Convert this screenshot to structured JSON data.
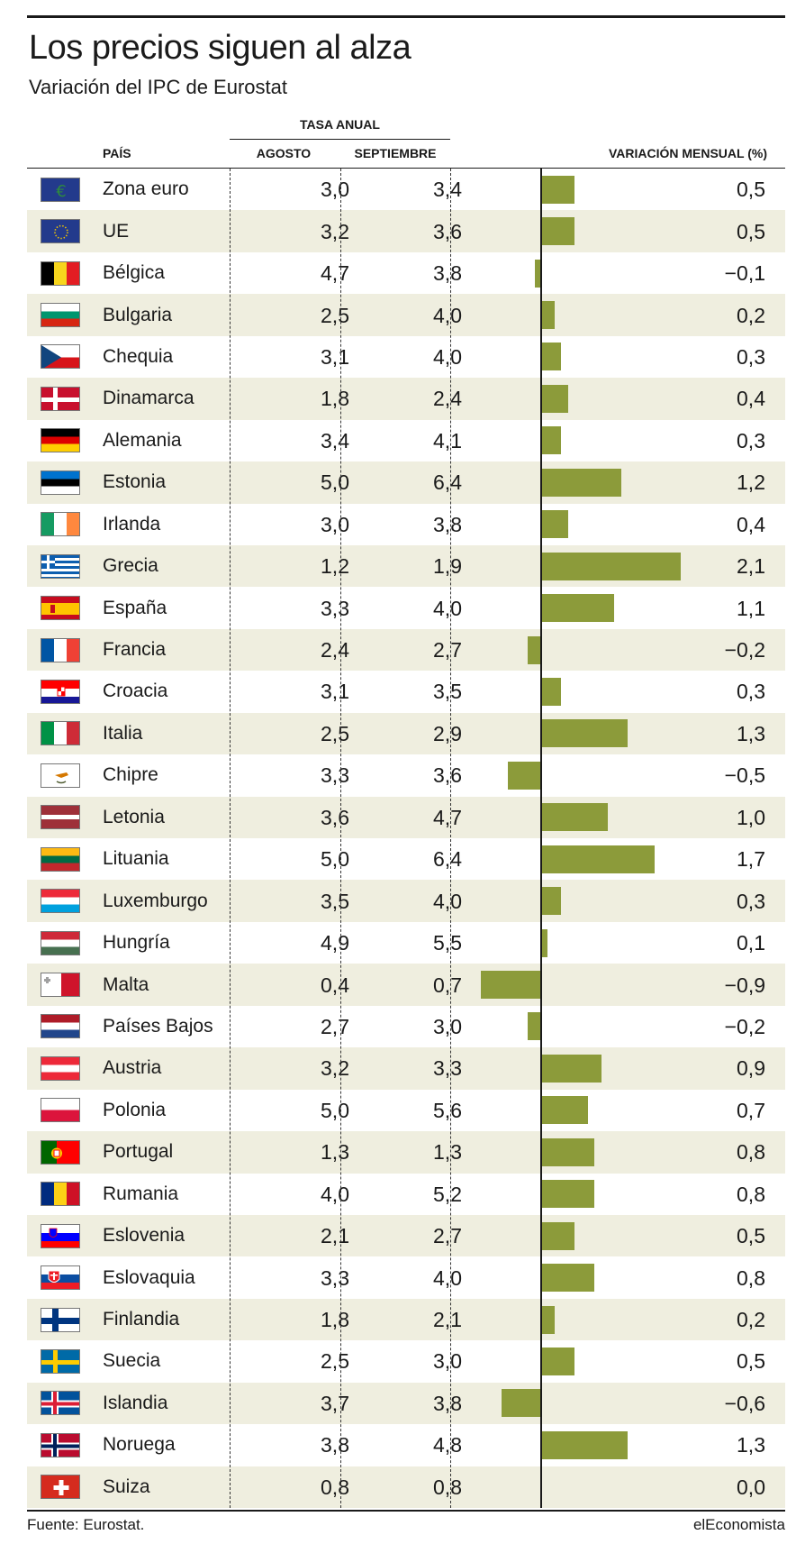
{
  "title": "Los precios siguen al alza",
  "subtitle": "Variación del IPC de Eurostat",
  "headers": {
    "pais": "PAÍS",
    "tasa_anual": "TASA ANUAL",
    "agosto": "AGOSTO",
    "septiembre": "SEPTIEMBRE",
    "variacion": "VARIACIÓN MENSUAL (%)"
  },
  "footer": {
    "source": "Fuente: Eurostat.",
    "brand": "elEconomista"
  },
  "colors": {
    "bar": "#8c9b3a",
    "stripe": "#efeedf"
  },
  "chart_data": {
    "type": "table",
    "columns": [
      "PAÍS",
      "AGOSTO",
      "SEPTIEMBRE",
      "VARIACIÓN MENSUAL (%)"
    ],
    "rows": [
      {
        "country": "Zona euro",
        "flag": "eurozone-flag",
        "agosto": "3,0",
        "septiembre": "3,4",
        "mensual": "0,5",
        "value": 0.5
      },
      {
        "country": "UE",
        "flag": "eu-flag",
        "agosto": "3,2",
        "septiembre": "3,6",
        "mensual": "0,5",
        "value": 0.5
      },
      {
        "country": "Bélgica",
        "flag": "belgium-flag",
        "agosto": "4,7",
        "septiembre": "3,8",
        "mensual": "−0,1",
        "value": -0.1
      },
      {
        "country": "Bulgaria",
        "flag": "bulgaria-flag",
        "agosto": "2,5",
        "septiembre": "4,0",
        "mensual": "0,2",
        "value": 0.2
      },
      {
        "country": "Chequia",
        "flag": "czechia-flag",
        "agosto": "3,1",
        "septiembre": "4,0",
        "mensual": "0,3",
        "value": 0.3
      },
      {
        "country": "Dinamarca",
        "flag": "denmark-flag",
        "agosto": "1,8",
        "septiembre": "2,4",
        "mensual": "0,4",
        "value": 0.4
      },
      {
        "country": "Alemania",
        "flag": "germany-flag",
        "agosto": "3,4",
        "septiembre": "4,1",
        "mensual": "0,3",
        "value": 0.3
      },
      {
        "country": "Estonia",
        "flag": "estonia-flag",
        "agosto": "5,0",
        "septiembre": "6,4",
        "mensual": "1,2",
        "value": 1.2
      },
      {
        "country": "Irlanda",
        "flag": "ireland-flag",
        "agosto": "3,0",
        "septiembre": "3,8",
        "mensual": "0,4",
        "value": 0.4
      },
      {
        "country": "Grecia",
        "flag": "greece-flag",
        "agosto": "1,2",
        "septiembre": "1,9",
        "mensual": "2,1",
        "value": 2.1
      },
      {
        "country": "España",
        "flag": "spain-flag",
        "agosto": "3,3",
        "septiembre": "4,0",
        "mensual": "1,1",
        "value": 1.1
      },
      {
        "country": "Francia",
        "flag": "france-flag",
        "agosto": "2,4",
        "septiembre": "2,7",
        "mensual": "−0,2",
        "value": -0.2
      },
      {
        "country": "Croacia",
        "flag": "croatia-flag",
        "agosto": "3,1",
        "septiembre": "3,5",
        "mensual": "0,3",
        "value": 0.3
      },
      {
        "country": "Italia",
        "flag": "italy-flag",
        "agosto": "2,5",
        "septiembre": "2,9",
        "mensual": "1,3",
        "value": 1.3
      },
      {
        "country": "Chipre",
        "flag": "cyprus-flag",
        "agosto": "3,3",
        "septiembre": "3,6",
        "mensual": "−0,5",
        "value": -0.5
      },
      {
        "country": "Letonia",
        "flag": "latvia-flag",
        "agosto": "3,6",
        "septiembre": "4,7",
        "mensual": "1,0",
        "value": 1.0
      },
      {
        "country": "Lituania",
        "flag": "lithuania-flag",
        "agosto": "5,0",
        "septiembre": "6,4",
        "mensual": "1,7",
        "value": 1.7
      },
      {
        "country": "Luxemburgo",
        "flag": "luxembourg-flag",
        "agosto": "3,5",
        "septiembre": "4,0",
        "mensual": "0,3",
        "value": 0.3
      },
      {
        "country": "Hungría",
        "flag": "hungary-flag",
        "agosto": "4,9",
        "septiembre": "5,5",
        "mensual": "0,1",
        "value": 0.1
      },
      {
        "country": "Malta",
        "flag": "malta-flag",
        "agosto": "0,4",
        "septiembre": "0,7",
        "mensual": "−0,9",
        "value": -0.9
      },
      {
        "country": "Países Bajos",
        "flag": "netherlands-flag",
        "agosto": "2,7",
        "septiembre": "3,0",
        "mensual": "−0,2",
        "value": -0.2
      },
      {
        "country": "Austria",
        "flag": "austria-flag",
        "agosto": "3,2",
        "septiembre": "3,3",
        "mensual": "0,9",
        "value": 0.9
      },
      {
        "country": "Polonia",
        "flag": "poland-flag",
        "agosto": "5,0",
        "septiembre": "5,6",
        "mensual": "0,7",
        "value": 0.7
      },
      {
        "country": "Portugal",
        "flag": "portugal-flag",
        "agosto": "1,3",
        "septiembre": "1,3",
        "mensual": "0,8",
        "value": 0.8
      },
      {
        "country": "Rumania",
        "flag": "romania-flag",
        "agosto": "4,0",
        "septiembre": "5,2",
        "mensual": "0,8",
        "value": 0.8
      },
      {
        "country": "Eslovenia",
        "flag": "slovenia-flag",
        "agosto": "2,1",
        "septiembre": "2,7",
        "mensual": "0,5",
        "value": 0.5
      },
      {
        "country": "Eslovaquia",
        "flag": "slovakia-flag",
        "agosto": "3,3",
        "septiembre": "4,0",
        "mensual": "0,8",
        "value": 0.8
      },
      {
        "country": "Finlandia",
        "flag": "finland-flag",
        "agosto": "1,8",
        "septiembre": "2,1",
        "mensual": "0,2",
        "value": 0.2
      },
      {
        "country": "Suecia",
        "flag": "sweden-flag",
        "agosto": "2,5",
        "septiembre": "3,0",
        "mensual": "0,5",
        "value": 0.5
      },
      {
        "country": "Islandia",
        "flag": "iceland-flag",
        "agosto": "3,7",
        "septiembre": "3,8",
        "mensual": "−0,6",
        "value": -0.6
      },
      {
        "country": "Noruega",
        "flag": "norway-flag",
        "agosto": "3,8",
        "septiembre": "4,8",
        "mensual": "1,3",
        "value": 1.3
      },
      {
        "country": "Suiza",
        "flag": "switzerland-flag",
        "agosto": "0,8",
        "septiembre": "0,8",
        "mensual": "0,0",
        "value": 0.0
      }
    ]
  }
}
